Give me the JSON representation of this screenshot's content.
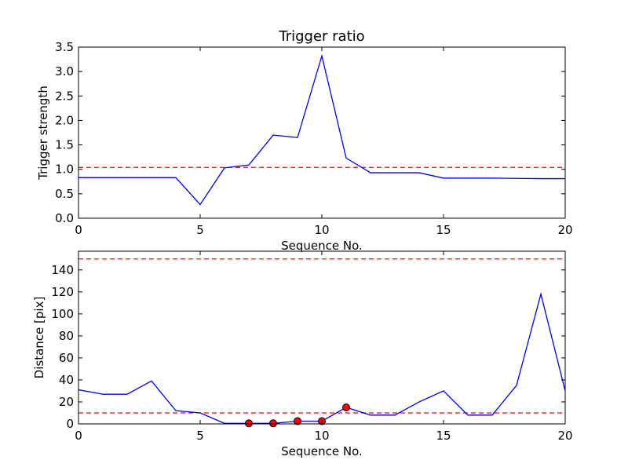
{
  "colors": {
    "line": "#0000ff",
    "threshold": "#ff0000",
    "marker_fill": "#ff0000",
    "axes": "#000000",
    "background": "#ffffff"
  },
  "chart_data": [
    {
      "type": "line",
      "title": "Trigger ratio",
      "xlabel": "Sequence No.",
      "ylabel": "Trigger strength",
      "xlim": [
        0,
        20
      ],
      "ylim": [
        0,
        3.5
      ],
      "xticks": [
        0,
        5,
        10,
        15,
        20
      ],
      "yticks": [
        0.0,
        0.5,
        1.0,
        1.5,
        2.0,
        2.5,
        3.0,
        3.5
      ],
      "ytick_labels": [
        "0.0",
        "0.5",
        "1.0",
        "1.5",
        "2.0",
        "2.5",
        "3.0",
        "3.5"
      ],
      "grid": false,
      "series": [
        {
          "style": "solid",
          "x": [
            0,
            1,
            2,
            3,
            4,
            5,
            6,
            7,
            8,
            9,
            10,
            11,
            12,
            13,
            14,
            15,
            16,
            17,
            18,
            19,
            20
          ],
          "y": [
            0.83,
            0.83,
            0.83,
            0.83,
            0.83,
            0.28,
            1.03,
            1.09,
            1.7,
            1.65,
            3.32,
            1.23,
            0.93,
            0.93,
            0.93,
            0.82,
            0.82,
            0.82,
            0.815,
            0.81,
            0.81
          ]
        }
      ],
      "hlines": [
        1.04
      ],
      "markers": []
    },
    {
      "type": "line",
      "title": "",
      "xlabel": "Sequence No.",
      "ylabel": "Distance [pix]",
      "xlim": [
        0,
        20
      ],
      "ylim": [
        0,
        157
      ],
      "xticks": [
        0,
        5,
        10,
        15,
        20
      ],
      "yticks": [
        0,
        20,
        40,
        60,
        80,
        100,
        120,
        140
      ],
      "ytick_labels": [
        "0",
        "20",
        "40",
        "60",
        "80",
        "100",
        "120",
        "140"
      ],
      "grid": false,
      "series": [
        {
          "style": "solid",
          "x": [
            0,
            1,
            2,
            3,
            4,
            5,
            6,
            7,
            8,
            9,
            10,
            11,
            12,
            13,
            14,
            15,
            16,
            17,
            18,
            19,
            20
          ],
          "y": [
            31,
            27,
            27,
            39,
            12,
            10,
            0.5,
            0.5,
            0.5,
            2.5,
            2.5,
            15,
            8,
            8,
            20,
            30,
            8,
            8,
            35,
            118,
            30
          ]
        }
      ],
      "hlines": [
        10,
        150
      ],
      "markers": [
        {
          "x": 7,
          "y": 0.5
        },
        {
          "x": 8,
          "y": 0.5
        },
        {
          "x": 9,
          "y": 2.5
        },
        {
          "x": 10,
          "y": 2.5
        },
        {
          "x": 11,
          "y": 15
        }
      ]
    }
  ]
}
